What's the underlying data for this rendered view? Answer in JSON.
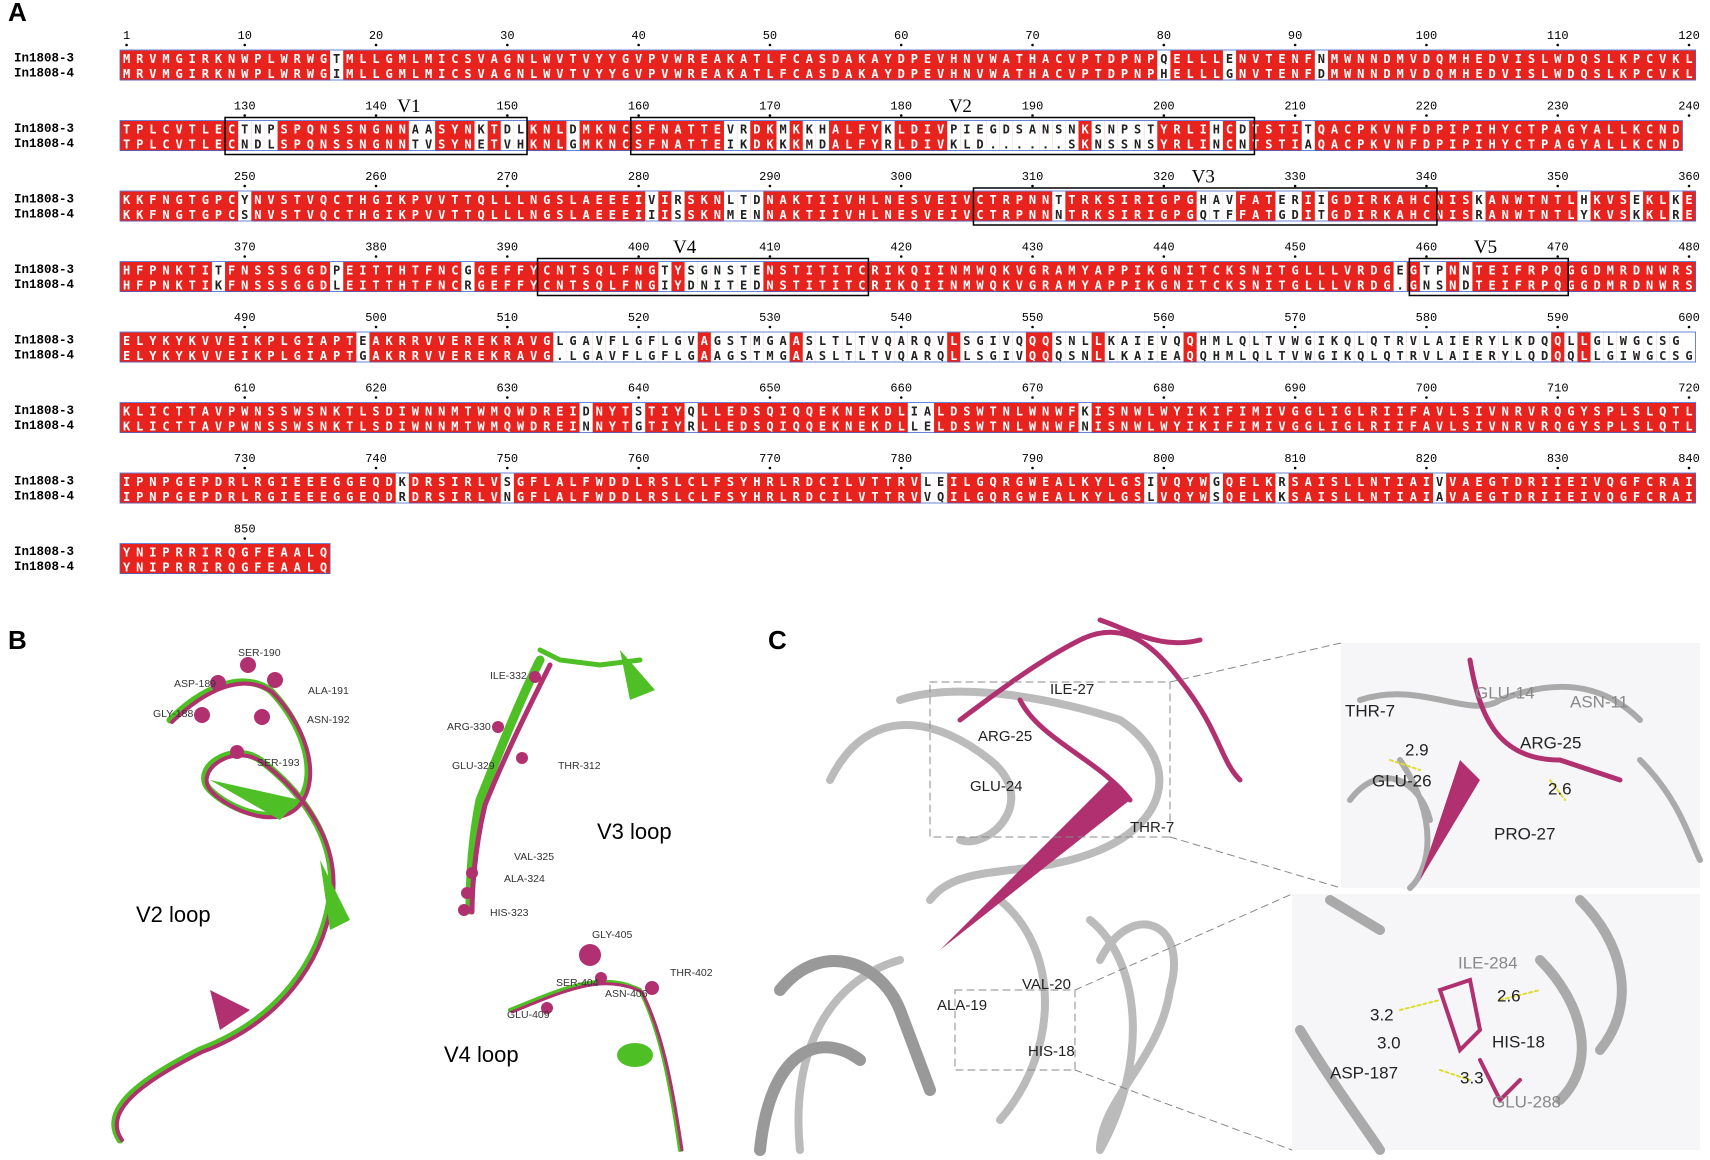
{
  "panels": {
    "a": "A",
    "b": "B",
    "c": "C"
  },
  "alignment": {
    "names": [
      "In1808-3",
      "In1808-4"
    ],
    "regions": [
      "V1",
      "V2",
      "V3",
      "V4",
      "V5"
    ],
    "blocks": [
      {
        "start": 1,
        "ruler": [
          1,
          10,
          20,
          30,
          40,
          50,
          60,
          70,
          80,
          90,
          100,
          110,
          120
        ],
        "rows": [
          "MRVMGIRKNWPLWRWGTMLLGMLMICSVAGNLWVTVYYGVPVWREAKATLFCASDAKAYDPEVHNVWATHACVPTDPNPQELLLENVTENFNMWNNDMVDQMHEDVISLWDQSLKPCVKL",
          "MRVMGIRKNWPLWRWGIMLLGMLMICSVAGNLWVTVYYGVPVWREAKATLFCASDAKAYDPEVHNVWATHACVPTDPNPHELLLGNVTENFDMWNNDMVDQMHEDVISLWDQSLKPCVKL"
        ]
      },
      {
        "start": 121,
        "ruler": [
          130,
          140,
          150,
          160,
          170,
          180,
          190,
          200,
          210,
          220,
          230,
          240
        ],
        "rows": [
          "TPLCVTLECTNPSPQNSSNGNNAASYNKTDLKNLDMKNCSFNATTEVRDKMKKHALFYKLDIVPIEGDSANSNKSNPSTYRLIHCDTSTITQACPKVNFDPIPIHYCTPAGYALLKCND",
          "TPLCVTLECNDLSPQNSSNGNNTVSYNETVHKNLGMKNCSFNATTEIKDKKKMDALFYRLDIVKLD......SKNSSNSYRLINCNTSTIAQACPKVNFDPIPIHYCTPAGYALLKCND"
        ]
      },
      {
        "start": 241,
        "ruler": [
          250,
          260,
          270,
          280,
          290,
          300,
          310,
          320,
          330,
          340,
          350,
          360
        ],
        "rows": [
          "KKFNGTGPCYNVSTVQCTHGIKPVVTTQLLLNGSLAEEEIVIRSKNLTDNAKTIIVHLNESVEIVCTRPNNTTRKSIRIGPGHAVFATERIIGDIRKAHCNISKANWTNTLHKVSEKLKE",
          "KKFNGTGPCSNVSTVQCTHGIKPVVTTQLLLNGSLAEEEIIISSKNMENNAKTIIVHLNESVEIVCTRPNNNTRKSIRIGPGQTFFATGDITGDIRKAHCNISRANWTNTLYKVSKKLRE"
        ]
      },
      {
        "start": 361,
        "ruler": [
          370,
          380,
          390,
          400,
          410,
          420,
          430,
          440,
          450,
          460,
          470,
          480
        ],
        "rows": [
          "HFPNKTITFNSSSGGDPEITTHTFNCGGEFFYCNTSQLFNGTYSGNSTENSTITITCRIKQIINMWQKVGRAMYAPPIKGNITCKSNITGLLLVRDGEGTPNNTEIFRPQGGDMRDNWRS",
          "HFPNKTIKFNSSSGGDLEITTHTFNCRGEFFYCNTSQLFNGIYDNITEDNSTITITCRIKQIINMWQKVGRAMYAPPIKGNITCKSNITGLLLVRDG.GNSNDTEIFRPQGGDMRDNWRS"
        ]
      },
      {
        "start": 481,
        "ruler": [
          490,
          500,
          510,
          520,
          530,
          540,
          550,
          560,
          570,
          580,
          590,
          600
        ],
        "rows": [
          "ELYKYKVVEIKPLGIAPTEAKRRVVEREKRAVGLGAVFLGFLGVAGSTMGAASLTLTVQARQVLSGIVQQQSNLLKAIEVQQHMLQLTVWGIKQLQTRVLAIERYLKDQQLLGLWGCSG",
          "ELYKYKVVEIKPLGIAPTGAKRRVVEREKRAVG.LGAVFLGFLGAAGSTMGAASLTLTVQARQLLSGIVQQQSNLLKAIEAQQHMLQLTVWGIKQLQTRVLAIERYLQDQQLLGIWGCSG"
        ]
      },
      {
        "start": 601,
        "ruler": [
          610,
          620,
          630,
          640,
          650,
          660,
          670,
          680,
          690,
          700,
          710,
          720
        ],
        "rows": [
          "KLICTTAVPWNSSWSNKTLSDIWNNMTWMQWDREIDNYTSTIYQLLEDSQIQQEKNEKDLIALDSWTNLWNWFKISNWLWYIKIFIMIVGGLIGLRIIFAVLSIVNRVRQGYSPLSLQTL",
          "KLICTTAVPWNSSWSNKTLSDIWNNMTWMQWDREINNYTGTIYRLLEDSQIQQEKNEKDLLELDSWTNLWNWFNISNWLWYIKIFIMIVGGLIGLRIIFAVLSIVNRVRQGYSPLSLQTL"
        ]
      },
      {
        "start": 721,
        "ruler": [
          730,
          740,
          750,
          760,
          770,
          780,
          790,
          800,
          810,
          820,
          830,
          840
        ],
        "rows": [
          "IPNPGEPDRLRGIEEEGGEQDKDRSIRLVSGFLALFWDDLRSLCLFSYHRLRDCILVTTRVLEILGQRGWEALKYLGSIVQYWGQELKRSAISLLNTIAIVVAEGTDRIIEIVQGFCRAI",
          "IPNPGEPDRLRGIEEEGGEQDRDRSIRLVNGFLALFWDDLRSLCLFSYHRLRDCILVTTRVVQILGQRGWEALKYLGSLVQYWSQELKKSAISLLNTIAIAVAEGTDRIIEIVQGFCRAI"
        ]
      },
      {
        "start": 841,
        "ruler": [
          850
        ],
        "rows": [
          "YNIPRRIRQGFEAALQ",
          "YNIPRRIRQGFEAALQ"
        ]
      }
    ]
  },
  "panel_b": {
    "labels": [
      "SER-190",
      "ASP-189",
      "ALA-191",
      "GLY-188",
      "ASN-192",
      "SER-193",
      "V2 loop",
      "ILE-332",
      "ARG-330",
      "GLU-329",
      "THR-312",
      "V3 loop",
      "VAL-325",
      "ALA-324",
      "HIS-323",
      "GLY-405",
      "THR-402",
      "SER-404",
      "ASN-406",
      "GLU-409",
      "V4 loop"
    ]
  },
  "panel_c": {
    "labels": [
      "ILE-27",
      "ARG-25",
      "GLU-24",
      "THR-7",
      "VAL-20",
      "ALA-19",
      "HIS-18"
    ],
    "inset_top": [
      "THR-7",
      "GLU-14",
      "ASN-11",
      "2.9",
      "ARG-25",
      "GLU-26",
      "2.6",
      "PRO-27"
    ],
    "inset_bottom": [
      "ILE-284",
      "3.2",
      "2.6",
      "3.0",
      "HIS-18",
      "ASP-187",
      "3.3",
      "GLU-288"
    ]
  }
}
